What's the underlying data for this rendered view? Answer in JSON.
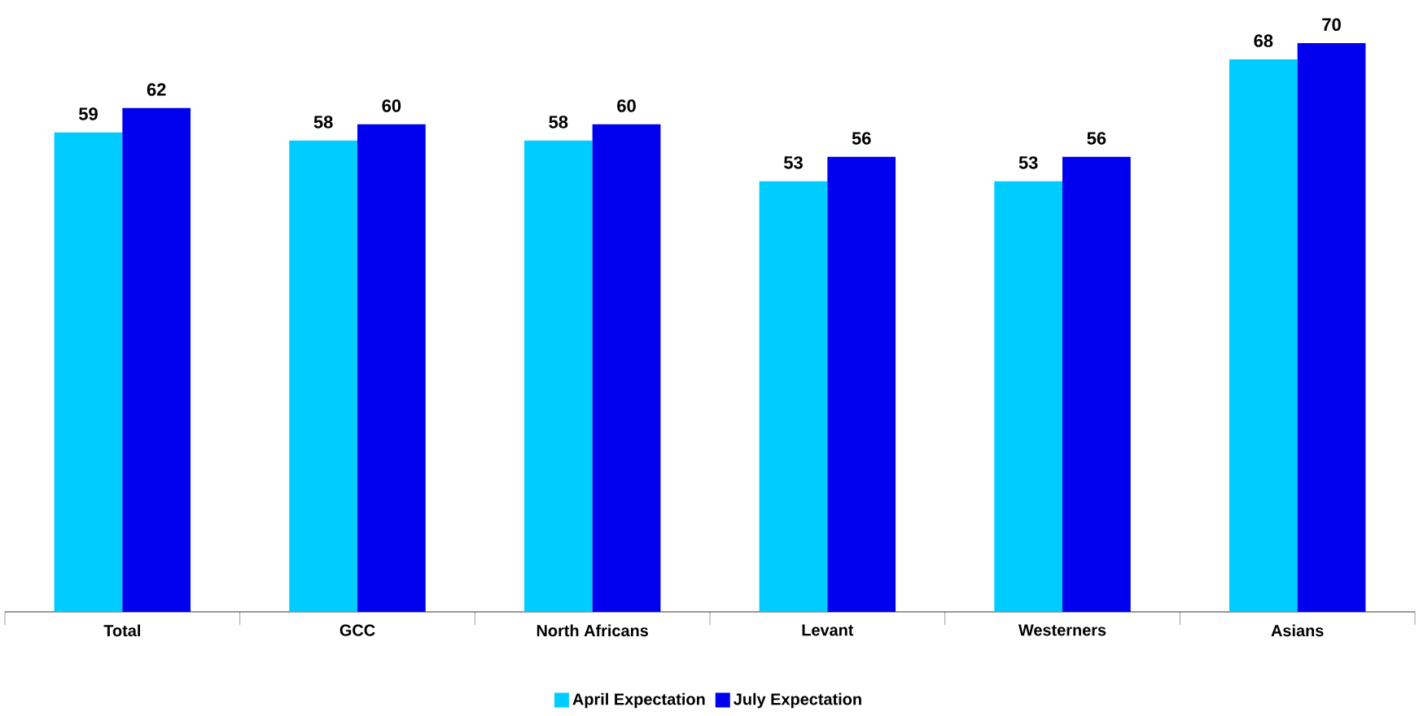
{
  "chart_data": {
    "type": "bar",
    "categories": [
      "Total",
      "GCC",
      "North Africans",
      "Levant",
      "Westerners",
      "Asians"
    ],
    "series": [
      {
        "name": "April Expectation",
        "color": "#00ccff",
        "values": [
          59,
          58,
          58,
          53,
          53,
          68
        ]
      },
      {
        "name": "July Expectation",
        "color": "#0000ee",
        "values": [
          62,
          60,
          60,
          56,
          56,
          70
        ]
      }
    ],
    "data_labels": true,
    "legend": "bottom"
  }
}
